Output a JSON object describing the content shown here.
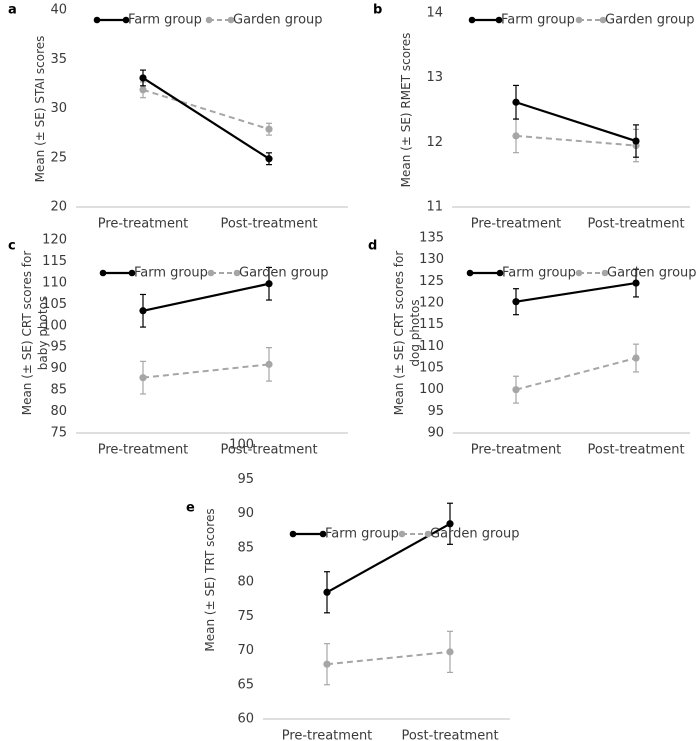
{
  "colors": {
    "farm": "#000000",
    "garden": "#a6a6a6",
    "axis": "#bfbfbf",
    "text": "#3a3a3a"
  },
  "chart_data": [
    {
      "panel": "a",
      "type": "line",
      "categories": [
        "Pre-treatment",
        "Post-treatment"
      ],
      "ylabel": "Mean (± SE) STAI scores",
      "ylim": [
        20,
        40
      ],
      "yticks": [
        20,
        25,
        30,
        35,
        40
      ],
      "series": [
        {
          "name": "Farm group",
          "values": [
            33.1,
            24.9
          ],
          "err": [
            0.8,
            0.6
          ],
          "style": "solid"
        },
        {
          "name": "Garden group",
          "values": [
            31.9,
            27.9
          ],
          "err": [
            0.8,
            0.6
          ],
          "style": "dashed"
        }
      ]
    },
    {
      "panel": "b",
      "type": "line",
      "categories": [
        "Pre-treatment",
        "Post-treatment"
      ],
      "ylabel": "Mean (± SE) RMET scores",
      "ylim": [
        11,
        14
      ],
      "yticks": [
        11,
        12,
        13,
        14
      ],
      "series": [
        {
          "name": "Farm group",
          "values": [
            12.62,
            12.02
          ],
          "err": [
            0.26,
            0.25
          ],
          "style": "solid"
        },
        {
          "name": "Garden group",
          "values": [
            12.1,
            11.95
          ],
          "err": [
            0.26,
            0.25
          ],
          "style": "dashed"
        }
      ]
    },
    {
      "panel": "c",
      "type": "line",
      "categories": [
        "Pre-treatment",
        "Post-treatment"
      ],
      "ylabel": "Mean (± SE) CRT scores for baby photos",
      "ylim": [
        75,
        120
      ],
      "yticks": [
        75,
        80,
        85,
        90,
        95,
        100,
        105,
        110,
        115,
        120
      ],
      "series": [
        {
          "name": "Farm group",
          "values": [
            103.5,
            109.8
          ],
          "err": [
            3.8,
            3.8
          ],
          "style": "solid"
        },
        {
          "name": "Garden group",
          "values": [
            87.9,
            91.0
          ],
          "err": [
            3.8,
            3.9
          ],
          "style": "dashed"
        }
      ]
    },
    {
      "panel": "d",
      "type": "line",
      "categories": [
        "Pre-treatment",
        "Post-treatment"
      ],
      "ylabel": "Mean (± SE) CRT scores for dog photos",
      "ylim": [
        90,
        135
      ],
      "yticks": [
        90,
        95,
        100,
        105,
        110,
        115,
        120,
        125,
        130,
        135
      ],
      "series": [
        {
          "name": "Farm group",
          "values": [
            120.3,
            124.6
          ],
          "err": [
            3.0,
            3.2
          ],
          "style": "solid"
        },
        {
          "name": "Garden group",
          "values": [
            100.0,
            107.3
          ],
          "err": [
            3.1,
            3.2
          ],
          "style": "dashed"
        }
      ]
    },
    {
      "panel": "e",
      "type": "line",
      "categories": [
        "Pre-treatment",
        "Post-treatment"
      ],
      "ylabel": "Mean (± SE) TRT scores",
      "ylim": [
        60,
        100
      ],
      "yticks": [
        60,
        65,
        70,
        75,
        80,
        85,
        90,
        95,
        100
      ],
      "series": [
        {
          "name": "Farm group",
          "values": [
            78.5,
            88.5
          ],
          "err": [
            3.0,
            3.0
          ],
          "style": "solid"
        },
        {
          "name": "Garden group",
          "values": [
            68.0,
            69.8
          ],
          "err": [
            3.0,
            3.0
          ],
          "style": "dashed"
        }
      ]
    }
  ]
}
